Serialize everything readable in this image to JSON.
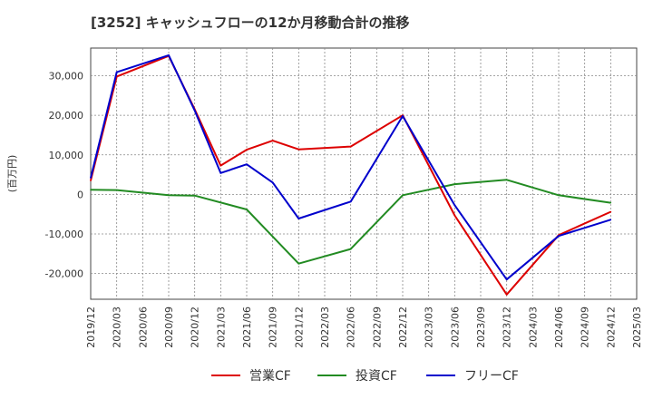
{
  "chart_data": {
    "type": "line",
    "title": "[3252]  キャッシュフローの12か月移動合計の推移",
    "ylabel": "(百万円)",
    "xlabel": "",
    "ylim": [
      -26500,
      37000
    ],
    "yticks": [
      -20000,
      -10000,
      0,
      10000,
      20000,
      30000
    ],
    "ytick_labels": [
      "-20,000",
      "-10,000",
      "0",
      "10,000",
      "20,000",
      "30,000"
    ],
    "x": [
      "2019/12",
      "2020/03",
      "2020/06",
      "2020/09",
      "2020/12",
      "2021/03",
      "2021/06",
      "2021/09",
      "2021/12",
      "2022/03",
      "2022/06",
      "2022/09",
      "2022/12",
      "2023/03",
      "2023/06",
      "2023/09",
      "2023/12",
      "2024/03",
      "2024/06",
      "2024/09",
      "2024/12",
      "2025/03"
    ],
    "series": [
      {
        "name": "営業CF",
        "color": "#dd0000",
        "values": [
          3500,
          29800,
          null,
          35000,
          21500,
          7300,
          11300,
          13600,
          11400,
          null,
          12100,
          null,
          20000,
          null,
          -5300,
          null,
          -25300,
          null,
          -10300,
          null,
          -4400,
          null
        ]
      },
      {
        "name": "投資CF",
        "color": "#228b22",
        "values": [
          1200,
          1100,
          null,
          -200,
          -300,
          null,
          -3800,
          null,
          -17500,
          null,
          -13800,
          null,
          -200,
          null,
          2600,
          null,
          3700,
          null,
          -200,
          null,
          -2100,
          null
        ]
      },
      {
        "name": "フリーCF",
        "color": "#0000cc",
        "values": [
          4200,
          30900,
          null,
          35200,
          21200,
          5400,
          7600,
          3000,
          -6100,
          null,
          -1800,
          null,
          19800,
          null,
          -2700,
          null,
          -21500,
          null,
          -10500,
          null,
          -6400,
          null
        ]
      }
    ],
    "grid": true,
    "legend_position": "bottom-center"
  }
}
